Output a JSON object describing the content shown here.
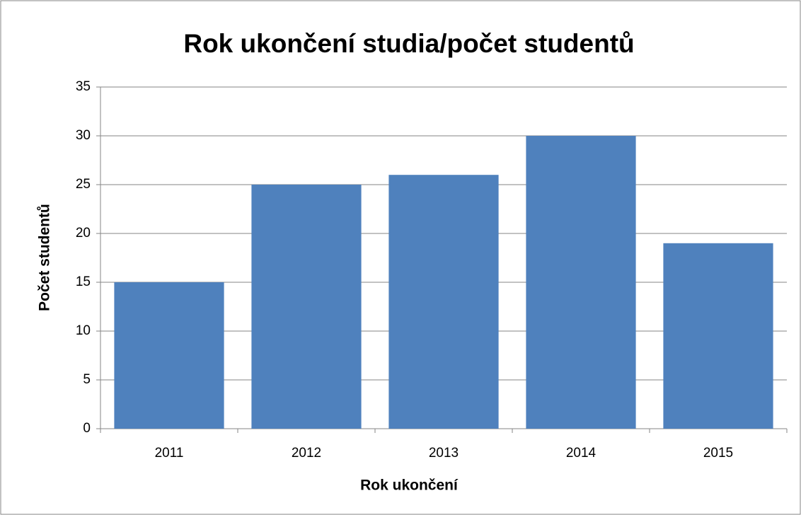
{
  "chart_data": {
    "type": "bar",
    "title": "Rok ukončení studia/počet studentů",
    "x_label": "Rok ukončení",
    "y_label": "Počet studentů",
    "categories": [
      "2011",
      "2012",
      "2013",
      "2014",
      "2015"
    ],
    "values": [
      15,
      25,
      26,
      30,
      19
    ],
    "color": "#4f81bd",
    "ylim": [
      0,
      35
    ],
    "yticks": [
      0,
      5,
      10,
      15,
      20,
      25,
      30,
      35
    ],
    "grid": true
  }
}
